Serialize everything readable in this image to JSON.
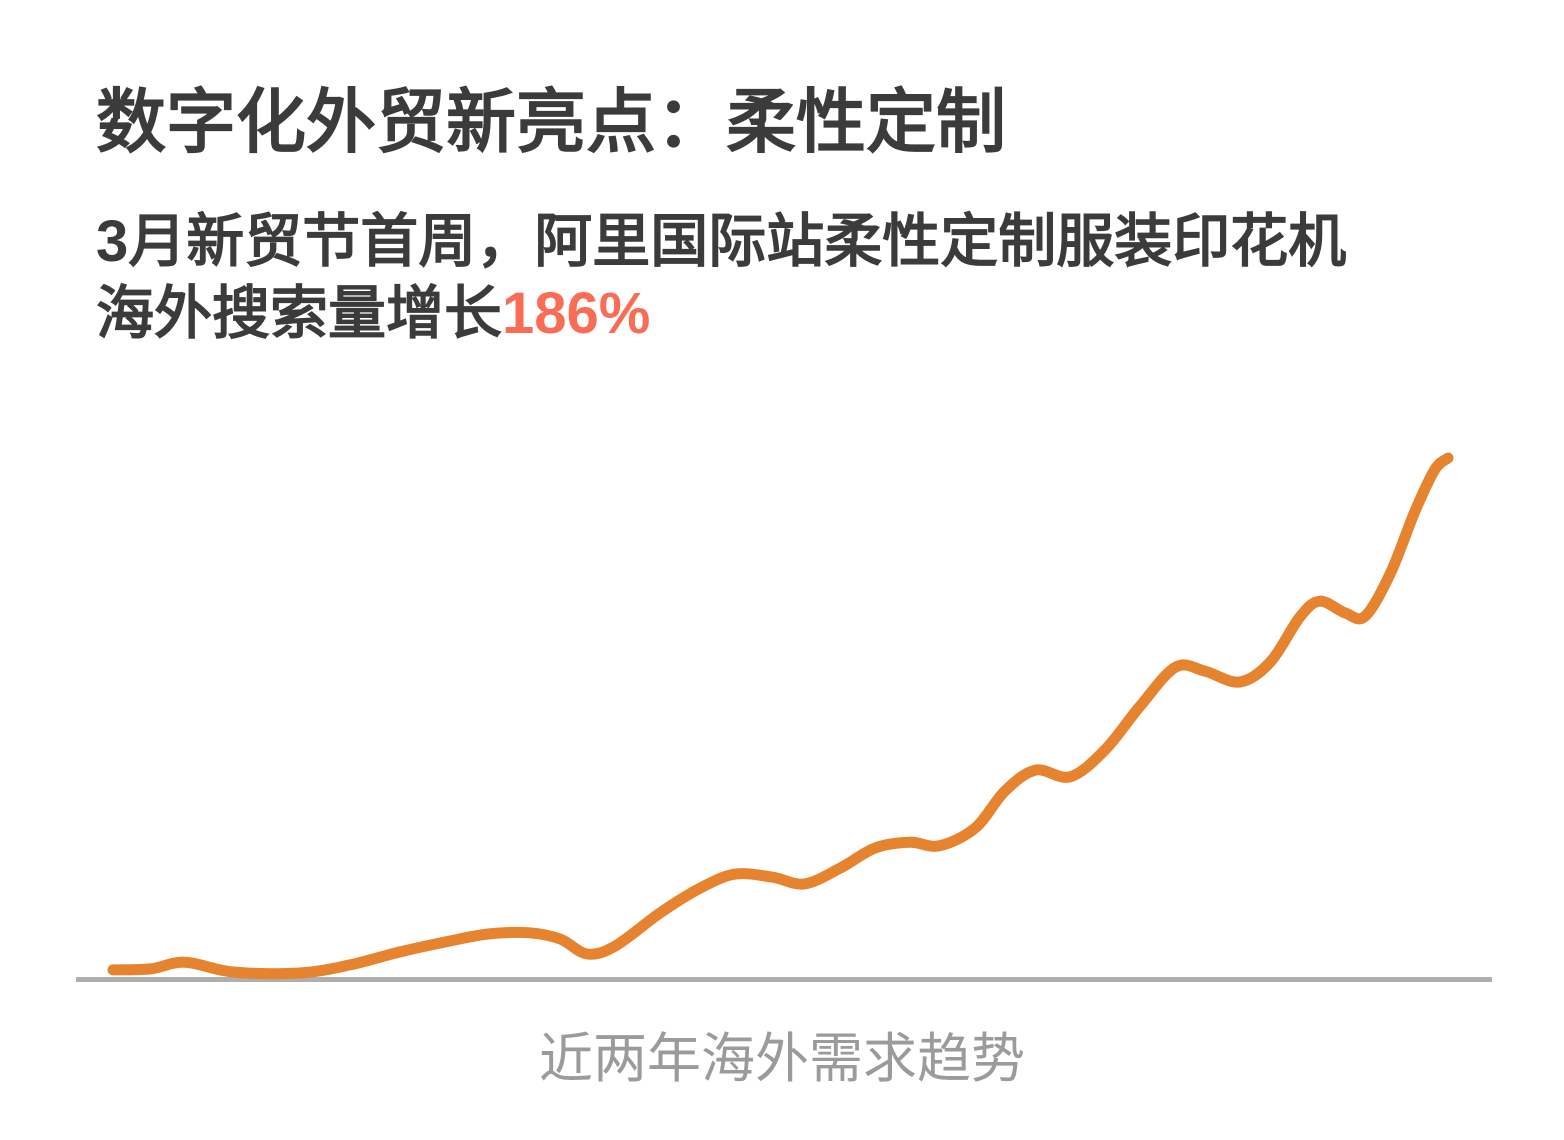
{
  "header": {
    "title": "数字化外贸新亮点：柔性定制",
    "subtitle_line1": "3月新贸节首周，阿里国际站柔性定制服装印花机",
    "subtitle_line2": "海外搜索量增长",
    "subtitle_highlight": "186%"
  },
  "colors": {
    "title_text": "#3B3B3B",
    "subtitle_text": "#3B3B3B",
    "highlight": "#F96C55",
    "line": "#E5832F",
    "baseline": "#AEAEAE",
    "caption_text": "#9B9B9B"
  },
  "chart_data": {
    "type": "line",
    "title": "近两年海外需求趋势",
    "xlabel": "近两年海外需求趋势",
    "ylabel": "",
    "grid": false,
    "legend_position": "none",
    "xlim": [
      0,
      100
    ],
    "ylim": [
      0,
      100
    ],
    "x_unit": "时间（近两年，百分比进度）",
    "y_unit": "海外搜索量（相对指数，终点=100）",
    "series": [
      {
        "name": "海外搜索量",
        "color": "#E5832F",
        "points": [
          [
            0,
            0.6
          ],
          [
            2.8,
            0.8
          ],
          [
            5.4,
            2.1
          ],
          [
            9.0,
            0.2
          ],
          [
            14.0,
            0.0
          ],
          [
            17.8,
            1.6
          ],
          [
            21.5,
            4.1
          ],
          [
            25.2,
            6.2
          ],
          [
            28.2,
            7.6
          ],
          [
            31.2,
            7.8
          ],
          [
            33.5,
            6.6
          ],
          [
            35.5,
            3.7
          ],
          [
            37.6,
            5.2
          ],
          [
            41.0,
            11.7
          ],
          [
            44.0,
            16.5
          ],
          [
            46.6,
            19.2
          ],
          [
            49.4,
            18.6
          ],
          [
            51.8,
            17.3
          ],
          [
            54.5,
            20.4
          ],
          [
            57.1,
            24.3
          ],
          [
            59.7,
            25.4
          ],
          [
            61.9,
            24.7
          ],
          [
            64.6,
            28.2
          ],
          [
            66.8,
            35.3
          ],
          [
            69.1,
            39.4
          ],
          [
            71.7,
            38.1
          ],
          [
            74.3,
            43.3
          ],
          [
            76.9,
            51.7
          ],
          [
            79.6,
            59.4
          ],
          [
            81.8,
            58.6
          ],
          [
            84.4,
            56.5
          ],
          [
            86.7,
            60.4
          ],
          [
            88.9,
            69.1
          ],
          [
            90.4,
            72.2
          ],
          [
            92.3,
            69.9
          ],
          [
            93.8,
            69.3
          ],
          [
            95.7,
            77.7
          ],
          [
            97.5,
            89.5
          ],
          [
            99.0,
            97.7
          ],
          [
            100,
            100
          ]
        ]
      }
    ]
  }
}
